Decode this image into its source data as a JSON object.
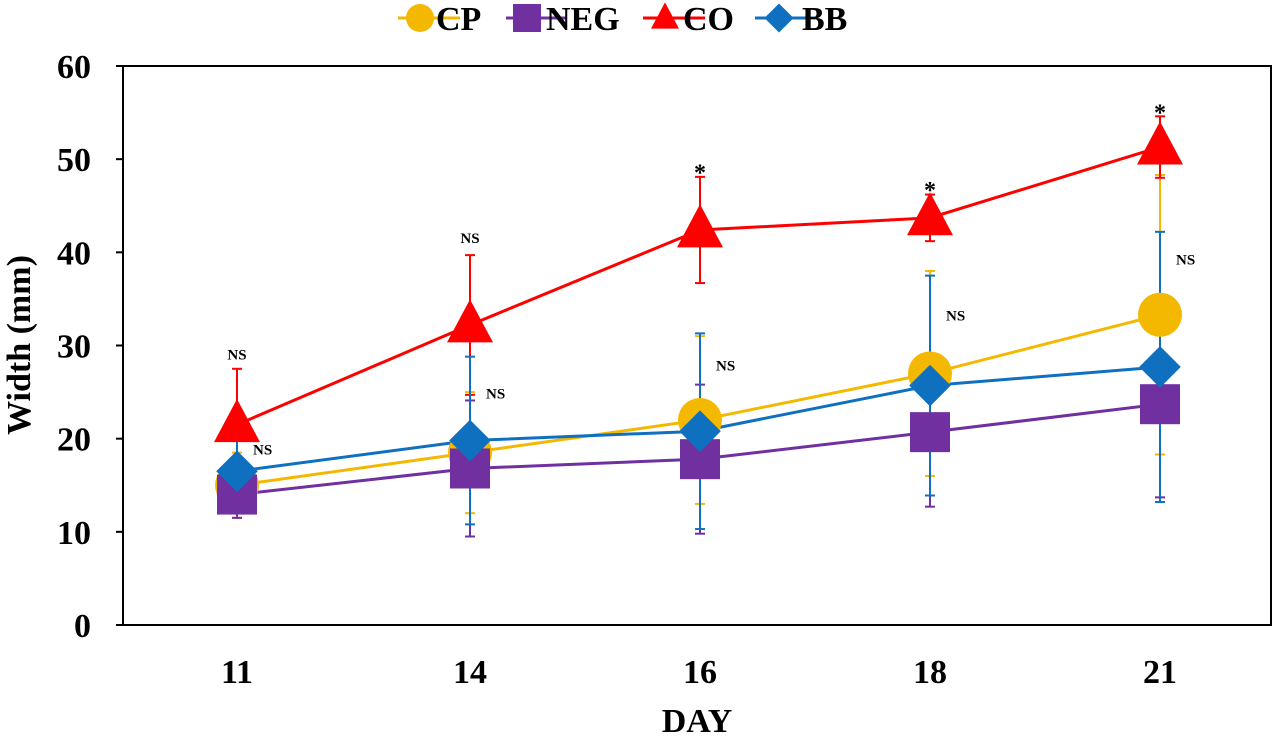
{
  "chart_data": {
    "type": "line",
    "title": "",
    "xlabel": "DAY",
    "ylabel": "Width (mm)",
    "categories": [
      "11",
      "14",
      "16",
      "18",
      "21"
    ],
    "ylim": [
      0,
      60
    ],
    "yticks": [
      "0",
      "10",
      "20",
      "30",
      "40",
      "50",
      "60"
    ],
    "grid": false,
    "legend_position": "top",
    "series": [
      {
        "name": "CP",
        "color": "#F5B800",
        "marker": "circle",
        "values": [
          15,
          18.5,
          22,
          27,
          33.3
        ],
        "error": [
          3.5,
          6.5,
          9,
          11,
          15
        ]
      },
      {
        "name": "NEG",
        "color": "#7030A0",
        "marker": "square",
        "values": [
          14,
          16.8,
          17.8,
          20.7,
          23.7
        ],
        "error": [
          2.5,
          7.3,
          8,
          8,
          10
        ]
      },
      {
        "name": "CO",
        "color": "#FF0000",
        "marker": "triangle",
        "values": [
          21.5,
          32.2,
          42.4,
          43.7,
          51.3
        ],
        "error": [
          6,
          7.5,
          5.7,
          2.5,
          3.3
        ]
      },
      {
        "name": "BB",
        "color": "#1070C0",
        "marker": "diamond",
        "values": [
          16.5,
          19.8,
          20.8,
          25.7,
          27.7
        ],
        "error": [
          4.5,
          9,
          10.5,
          11.8,
          14.5
        ]
      }
    ],
    "annotations": [
      {
        "category": "11",
        "text": "NS",
        "anchor_value": 28.5,
        "offset": "above"
      },
      {
        "category": "11",
        "text": "NS",
        "anchor_value": 18.3,
        "offset": "right"
      },
      {
        "category": "14",
        "text": "NS",
        "anchor_value": 41,
        "offset": "above"
      },
      {
        "category": "14",
        "text": "NS",
        "anchor_value": 24.3,
        "offset": "right"
      },
      {
        "category": "16",
        "text": "*",
        "anchor_value": 48.8,
        "offset": "above"
      },
      {
        "category": "16",
        "text": "NS",
        "anchor_value": 27.3,
        "offset": "right"
      },
      {
        "category": "18",
        "text": "*",
        "anchor_value": 46.9,
        "offset": "above"
      },
      {
        "category": "18",
        "text": "NS",
        "anchor_value": 32.7,
        "offset": "right"
      },
      {
        "category": "21",
        "text": "*",
        "anchor_value": 55.2,
        "offset": "above"
      },
      {
        "category": "21",
        "text": "NS",
        "anchor_value": 38.7,
        "offset": "right"
      }
    ]
  }
}
